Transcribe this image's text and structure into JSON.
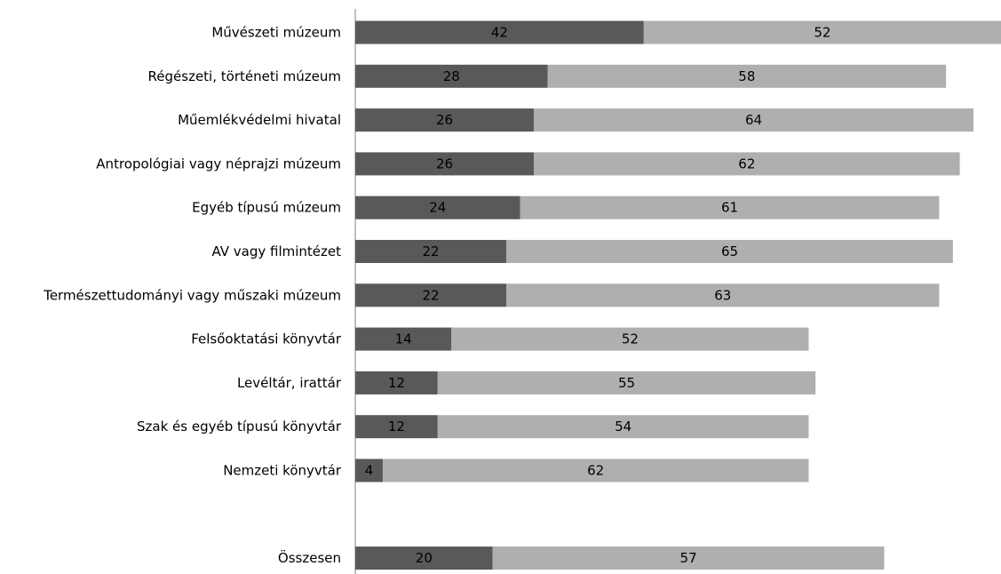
{
  "chart_data": {
    "type": "bar",
    "orientation": "horizontal",
    "stacked": true,
    "categories": [
      "Művészeti múzeum",
      "Régészeti, történeti múzeum",
      "Műemlékvédelmi hivatal",
      "Antropológiai vagy néprajzi múzeum",
      "Egyéb típusú múzeum",
      "AV vagy filmintézet",
      "Természettudományi vagy műszaki múzeum",
      "Felsőoktatási könyvtár",
      "Levéltár, irattár",
      "Szak és egyéb típusú könyvtár",
      "Nemzeti könyvtár",
      "",
      "Összesen"
    ],
    "series": [
      {
        "values": [
          42,
          28,
          26,
          26,
          24,
          22,
          22,
          14,
          12,
          12,
          4,
          null,
          20
        ],
        "color": "#595959"
      },
      {
        "values": [
          52,
          58,
          64,
          62,
          61,
          65,
          63,
          52,
          55,
          54,
          62,
          null,
          57
        ],
        "color": "#afafaf"
      }
    ],
    "xlim": [
      0,
      94
    ],
    "data_labels": true,
    "grid": false,
    "legend": "none"
  }
}
